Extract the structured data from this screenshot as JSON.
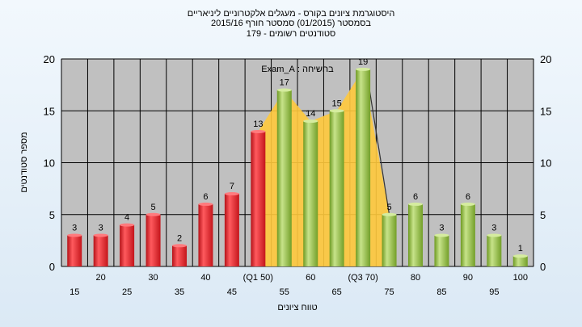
{
  "chart_data": {
    "type": "bar",
    "title_lines": [
      "היסטוגרמת ציונים בקורס - מעגלים אלקטרוניים ליניאריים",
      "בסמסטר  (01/2015)  סמסטר חורף  2015/16",
      "סטודנטים רשומים - 179"
    ],
    "annotation": "בחשיחה : Exam_A",
    "xlabel": "טווח ציונים",
    "ylabel": "מספר סטודנטים",
    "ylim": [
      0,
      20
    ],
    "yticks": [
      0,
      5,
      10,
      15,
      20
    ],
    "grid": true,
    "categories": [
      "15",
      "20",
      "25",
      "30",
      "35",
      "40",
      "45",
      "(Q1 50)",
      "55",
      "60",
      "65",
      "(Q3 70)",
      "75",
      "80",
      "85",
      "90",
      "95",
      "100"
    ],
    "values": [
      3,
      3,
      4,
      5,
      2,
      6,
      7,
      13,
      17,
      14,
      15,
      19,
      5,
      6,
      3,
      6,
      3,
      1
    ],
    "bar_groups": [
      "red",
      "red",
      "red",
      "red",
      "red",
      "red",
      "red",
      "red",
      "green",
      "green",
      "green",
      "green",
      "green",
      "green",
      "green",
      "green",
      "green",
      "green"
    ],
    "highlight_range": [
      "(Q1 50)",
      "(Q3 70)"
    ],
    "colors": {
      "red": "#e8262b",
      "green": "#8fbd3e",
      "highlight": "#ffc93c",
      "plot_bg": "#c0c0c0",
      "grid": "#000000"
    }
  }
}
